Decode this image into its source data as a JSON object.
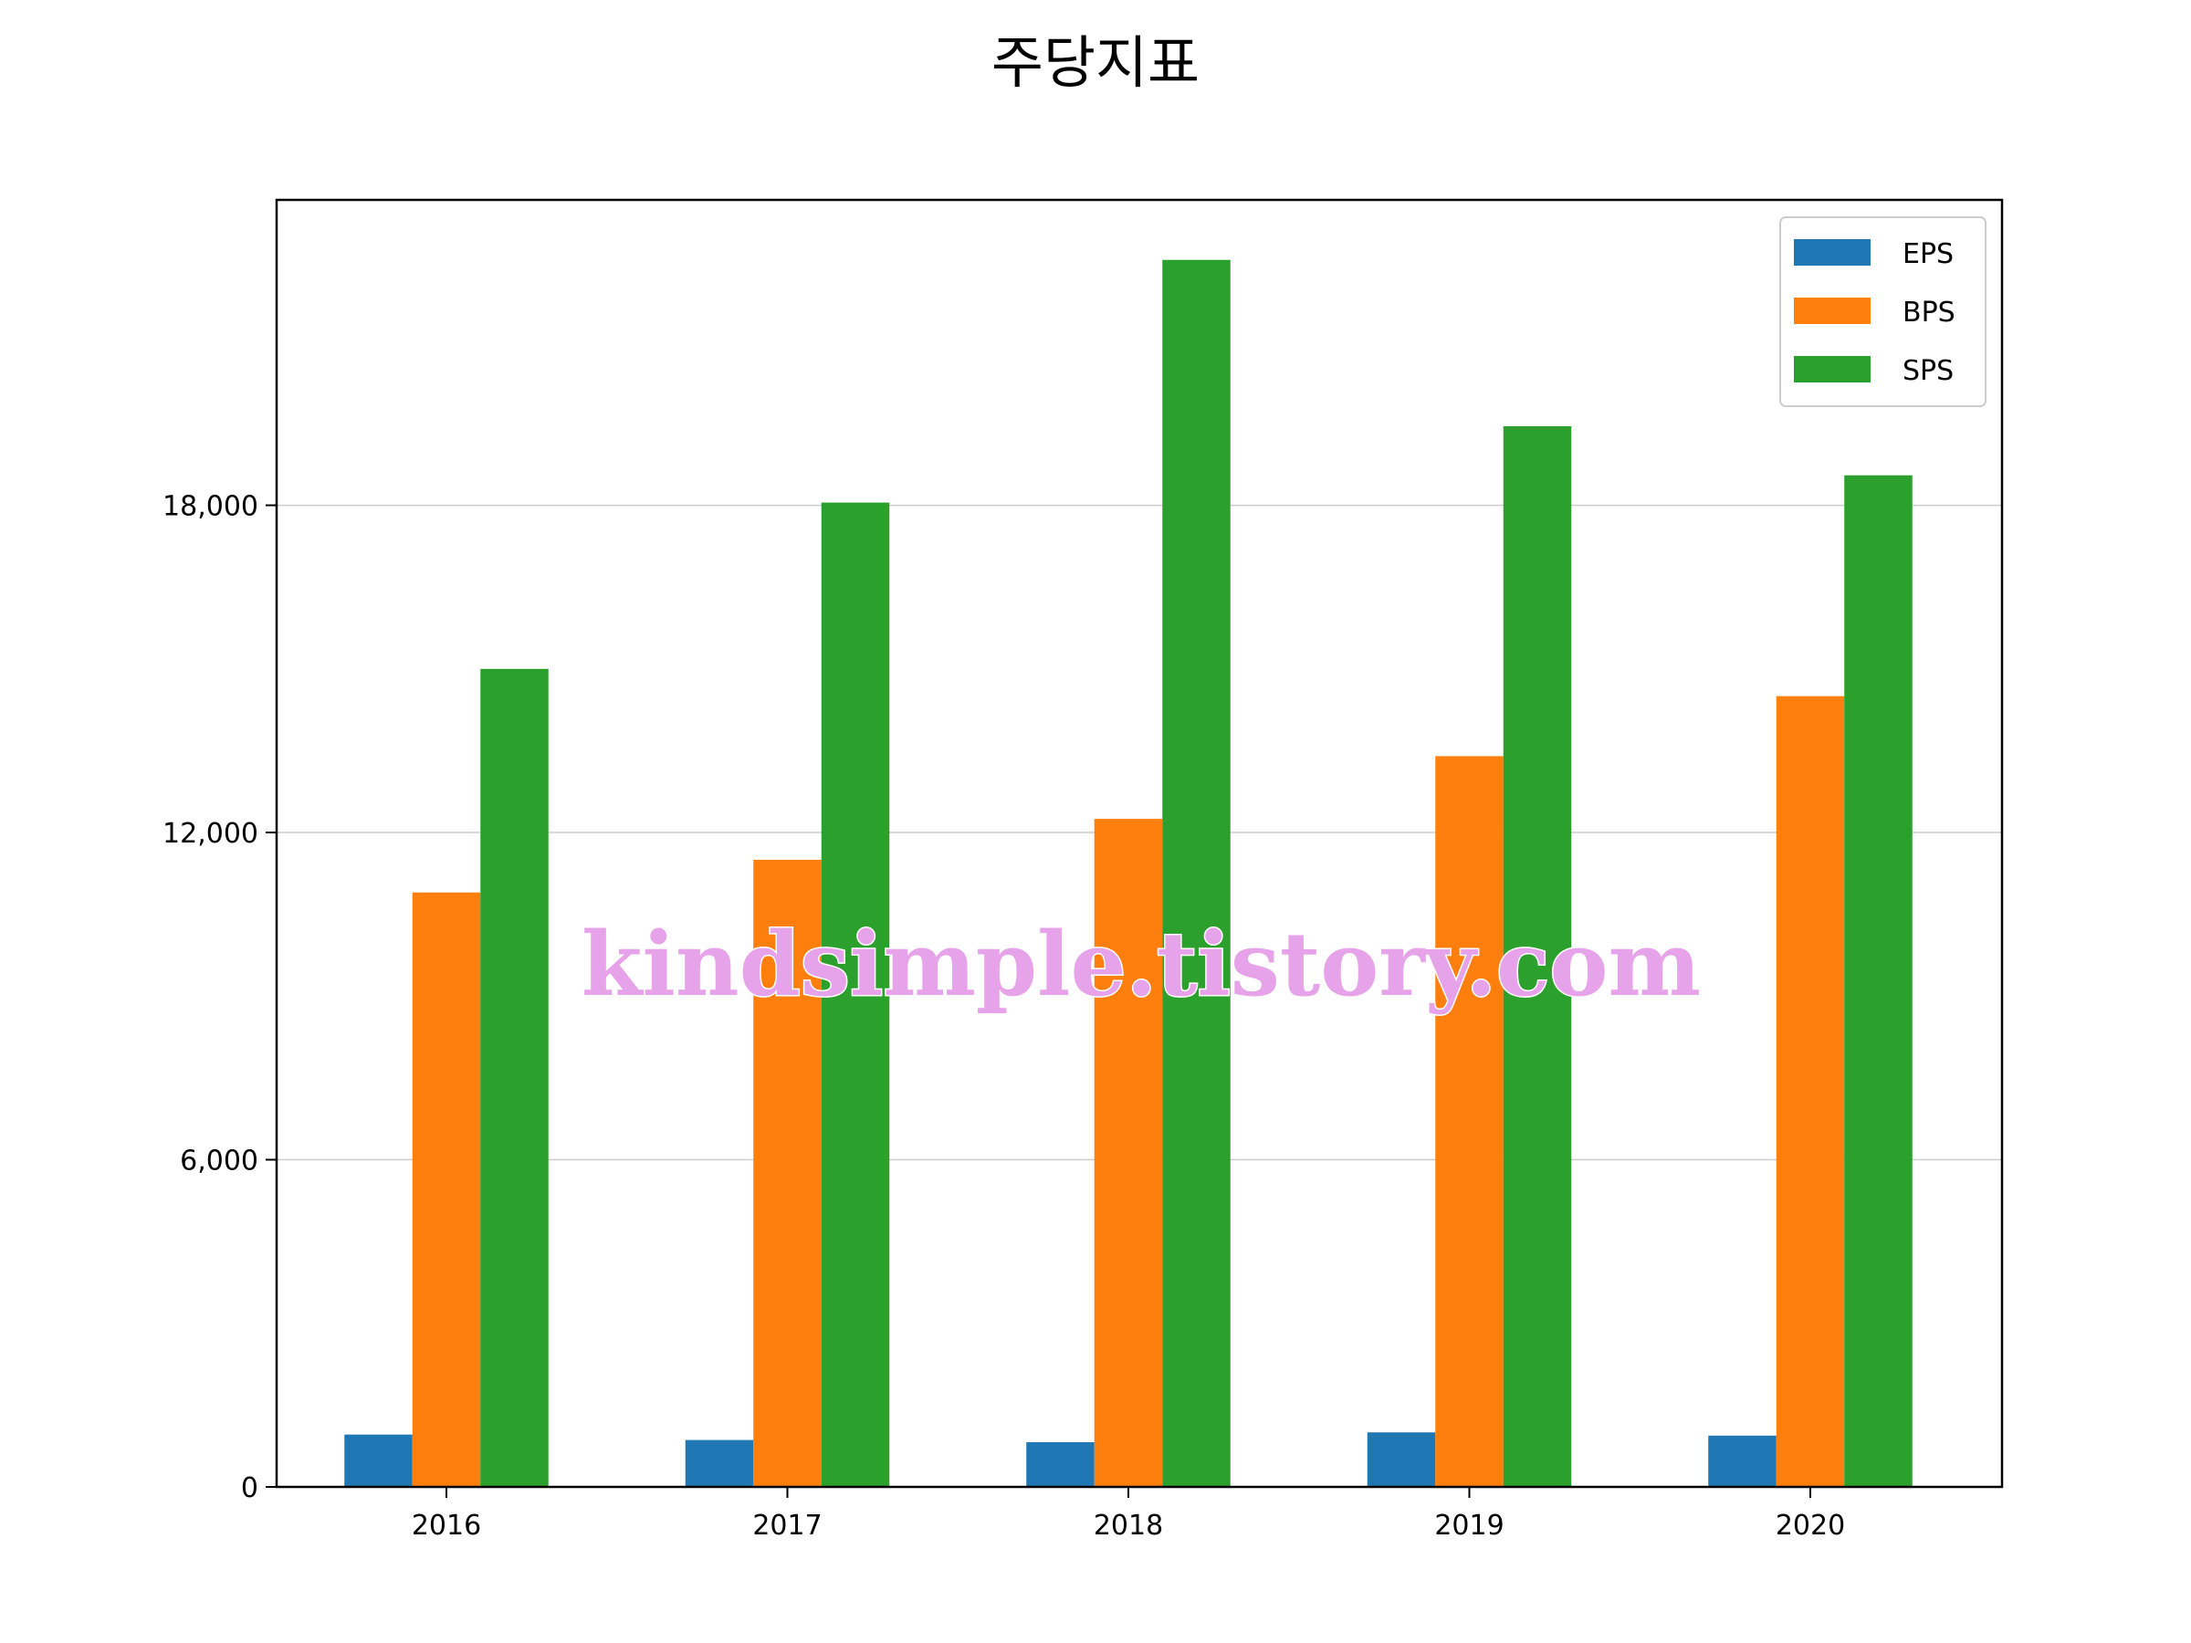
{
  "chart_data": {
    "type": "bar",
    "title": "주당지표",
    "xlabel": "",
    "ylabel": "",
    "categories": [
      "2016",
      "2017",
      "2018",
      "2019",
      "2020"
    ],
    "series": [
      {
        "name": "EPS",
        "color": "#1f77b4",
        "values": [
          960,
          860,
          820,
          1000,
          940
        ]
      },
      {
        "name": "BPS",
        "color": "#ff7f0e",
        "values": [
          10900,
          11500,
          12250,
          13400,
          14500
        ]
      },
      {
        "name": "SPS",
        "color": "#2ca02c",
        "values": [
          15000,
          18050,
          22500,
          19450,
          18550
        ]
      }
    ],
    "ylim": [
      0,
      23600
    ],
    "yticks": [
      0,
      6000,
      12000,
      18000
    ],
    "ytick_labels": [
      "0",
      "6,000",
      "12,000",
      "18,000"
    ],
    "grid": "horizontal",
    "legend_position": "top-right"
  },
  "watermark": "kindsimple.tistory.com"
}
